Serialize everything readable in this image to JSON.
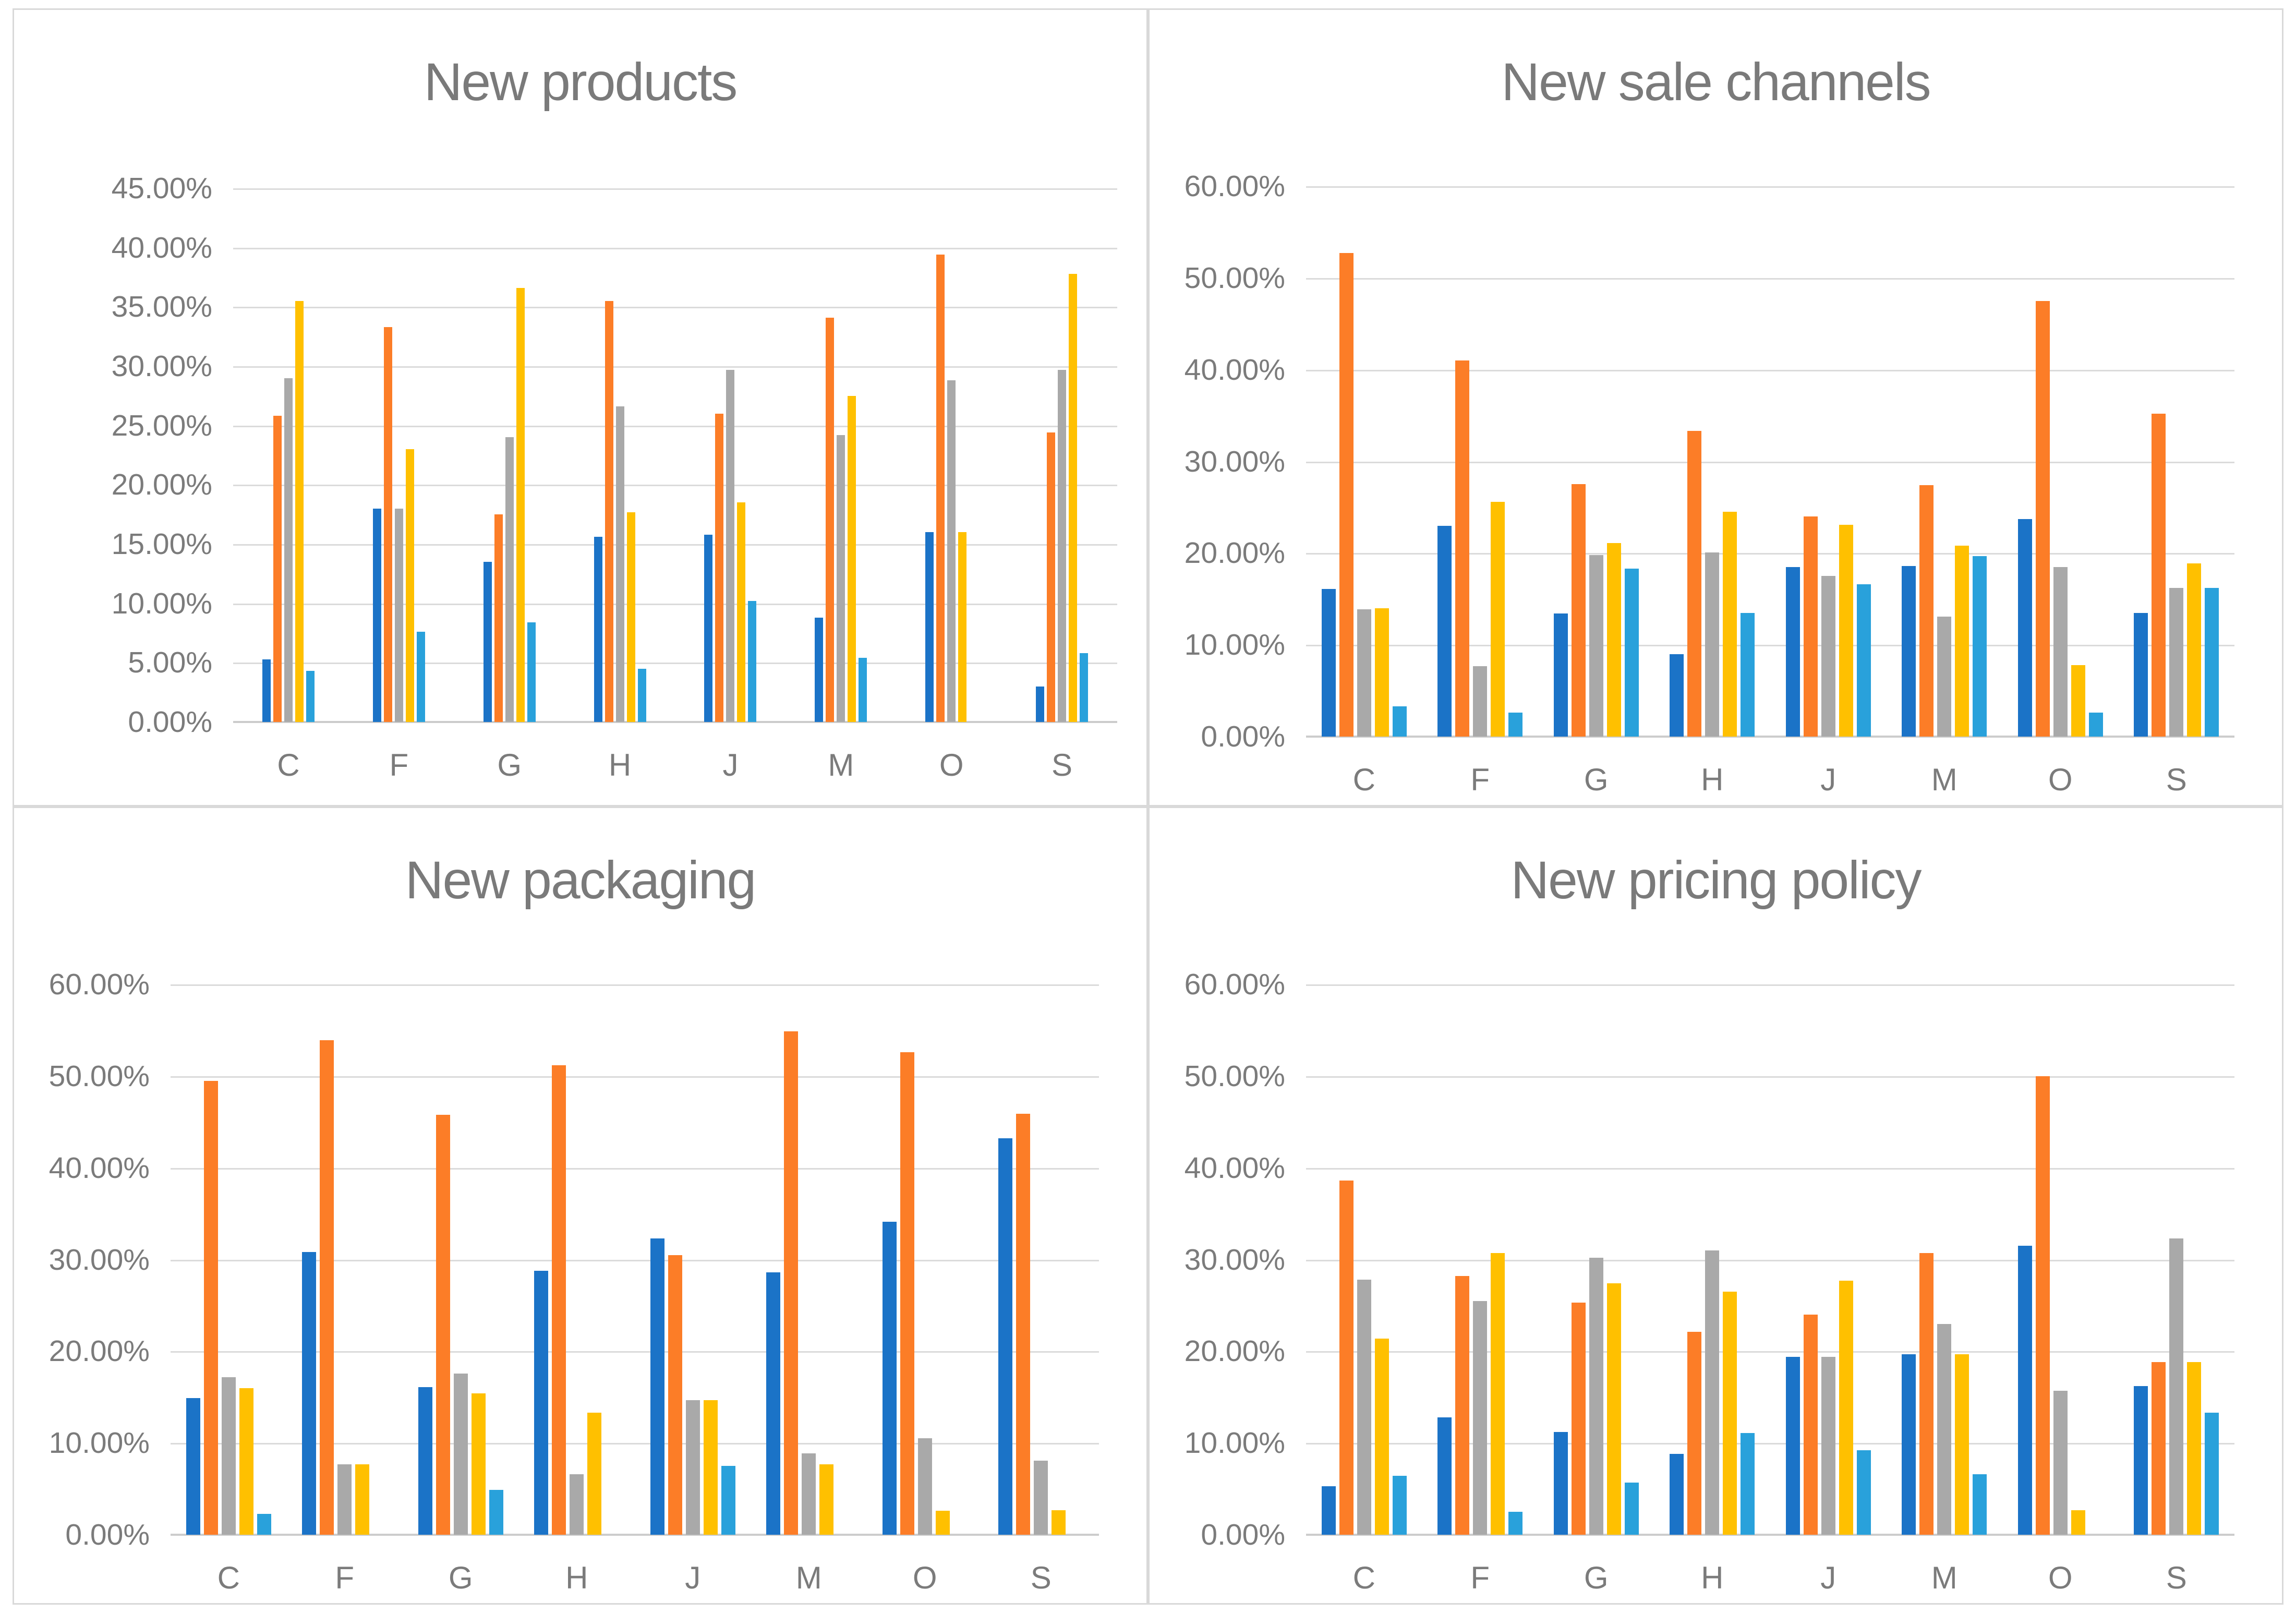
{
  "page": {
    "background": "#ffffff",
    "panel_border": "#d9d9d9"
  },
  "style": {
    "gridline_color": "#dbdbdb",
    "axis_line_color": "#cccccc",
    "text_color": "#7b7b7b",
    "title_color": "#7a7a7a",
    "palette": [
      "#1b73c7",
      "#fc7d27",
      "#a9a9a9",
      "#ffc000",
      "#29a1db"
    ]
  },
  "chart_data": [
    {
      "type": "bar",
      "title": "New products",
      "categories": [
        "C",
        "F",
        "G",
        "H",
        "J",
        "M",
        "O",
        "S"
      ],
      "xlabel": "",
      "ylabel": "",
      "ylim": [
        0,
        45
      ],
      "ytick_labels": [
        "45.00%",
        "40.00%",
        "35.00%",
        "30.00%",
        "25.00%",
        "20.00%",
        "15.00%",
        "10.00%",
        "5.00%",
        "0.00%"
      ],
      "grid": true,
      "legend": "none",
      "value_unit": "percent",
      "series": [
        {
          "name": "series-blue",
          "color": "#1b73c7",
          "values": [
            5.3,
            18.0,
            13.5,
            15.6,
            15.8,
            8.8,
            16.0,
            3.0
          ]
        },
        {
          "name": "series-orange",
          "color": "#fc7d27",
          "values": [
            25.8,
            33.3,
            17.5,
            35.5,
            26.0,
            34.1,
            39.4,
            24.4
          ]
        },
        {
          "name": "series-gray",
          "color": "#a9a9a9",
          "values": [
            29.0,
            18.0,
            24.0,
            26.6,
            29.7,
            24.2,
            28.8,
            29.7
          ]
        },
        {
          "name": "series-yellow",
          "color": "#ffc000",
          "values": [
            35.5,
            23.0,
            36.6,
            17.7,
            18.5,
            27.5,
            16.0,
            37.8
          ]
        },
        {
          "name": "series-lightblue",
          "color": "#29a1db",
          "values": [
            4.3,
            7.6,
            8.4,
            4.5,
            10.2,
            5.4,
            0,
            5.8
          ]
        }
      ]
    },
    {
      "type": "bar",
      "title": "New sale channels",
      "categories": [
        "C",
        "F",
        "G",
        "H",
        "J",
        "M",
        "O",
        "S"
      ],
      "xlabel": "",
      "ylabel": "",
      "ylim": [
        0,
        60
      ],
      "ytick_labels": [
        "60.00%",
        "50.00%",
        "40.00%",
        "30.00%",
        "20.00%",
        "10.00%",
        "0.00%"
      ],
      "grid": true,
      "legend": "none",
      "value_unit": "percent",
      "series": [
        {
          "name": "series-blue",
          "color": "#1b73c7",
          "values": [
            16.1,
            23.0,
            13.4,
            9.0,
            18.5,
            18.6,
            23.7,
            13.5
          ]
        },
        {
          "name": "series-orange",
          "color": "#fc7d27",
          "values": [
            52.7,
            41.0,
            27.5,
            33.3,
            24.0,
            27.4,
            47.5,
            35.2
          ]
        },
        {
          "name": "series-gray",
          "color": "#a9a9a9",
          "values": [
            13.9,
            7.7,
            19.8,
            20.1,
            17.5,
            13.1,
            18.5,
            16.2
          ]
        },
        {
          "name": "series-yellow",
          "color": "#ffc000",
          "values": [
            14.0,
            25.6,
            21.1,
            24.5,
            23.1,
            20.8,
            7.8,
            18.9
          ]
        },
        {
          "name": "series-lightblue",
          "color": "#29a1db",
          "values": [
            3.3,
            2.6,
            18.3,
            13.5,
            16.6,
            19.7,
            2.6,
            16.2
          ]
        }
      ]
    },
    {
      "type": "bar",
      "title": "New packaging",
      "categories": [
        "C",
        "F",
        "G",
        "H",
        "J",
        "M",
        "O",
        "S"
      ],
      "xlabel": "",
      "ylabel": "",
      "ylim": [
        0,
        60
      ],
      "ytick_labels": [
        "60.00%",
        "50.00%",
        "40.00%",
        "30.00%",
        "20.00%",
        "10.00%",
        "0.00%"
      ],
      "grid": true,
      "legend": "none",
      "value_unit": "percent",
      "series": [
        {
          "name": "series-blue",
          "color": "#1b73c7",
          "values": [
            14.9,
            30.8,
            16.1,
            28.8,
            32.3,
            28.6,
            34.1,
            43.2
          ]
        },
        {
          "name": "series-orange",
          "color": "#fc7d27",
          "values": [
            49.5,
            53.9,
            45.8,
            51.2,
            30.5,
            54.9,
            52.6,
            45.9
          ]
        },
        {
          "name": "series-gray",
          "color": "#a9a9a9",
          "values": [
            17.2,
            7.7,
            17.6,
            6.6,
            14.7,
            8.9,
            10.5,
            8.1
          ]
        },
        {
          "name": "series-yellow",
          "color": "#ffc000",
          "values": [
            16.0,
            7.7,
            15.4,
            13.3,
            14.7,
            7.7,
            2.6,
            2.7
          ]
        },
        {
          "name": "series-lightblue",
          "color": "#29a1db",
          "values": [
            2.3,
            0,
            4.9,
            0,
            7.5,
            0,
            0,
            0
          ]
        }
      ]
    },
    {
      "type": "bar",
      "title": "New pricing policy",
      "categories": [
        "C",
        "F",
        "G",
        "H",
        "J",
        "M",
        "O",
        "S"
      ],
      "xlabel": "",
      "ylabel": "",
      "ylim": [
        0,
        60
      ],
      "ytick_labels": [
        "60.00%",
        "50.00%",
        "40.00%",
        "30.00%",
        "20.00%",
        "10.00%",
        "0.00%"
      ],
      "grid": true,
      "legend": "none",
      "value_unit": "percent",
      "series": [
        {
          "name": "series-blue",
          "color": "#1b73c7",
          "values": [
            5.3,
            12.8,
            11.2,
            8.8,
            19.4,
            19.7,
            31.5,
            16.2
          ]
        },
        {
          "name": "series-orange",
          "color": "#fc7d27",
          "values": [
            38.6,
            28.2,
            25.3,
            22.1,
            24.0,
            30.7,
            50.0,
            18.8
          ]
        },
        {
          "name": "series-gray",
          "color": "#a9a9a9",
          "values": [
            27.8,
            25.5,
            30.2,
            31.0,
            19.4,
            23.0,
            15.7,
            32.3
          ]
        },
        {
          "name": "series-yellow",
          "color": "#ffc000",
          "values": [
            21.4,
            30.7,
            27.4,
            26.5,
            27.7,
            19.7,
            2.7,
            18.8
          ]
        },
        {
          "name": "series-lightblue",
          "color": "#29a1db",
          "values": [
            6.4,
            2.5,
            5.7,
            11.1,
            9.2,
            6.6,
            0,
            13.3
          ]
        }
      ]
    }
  ]
}
